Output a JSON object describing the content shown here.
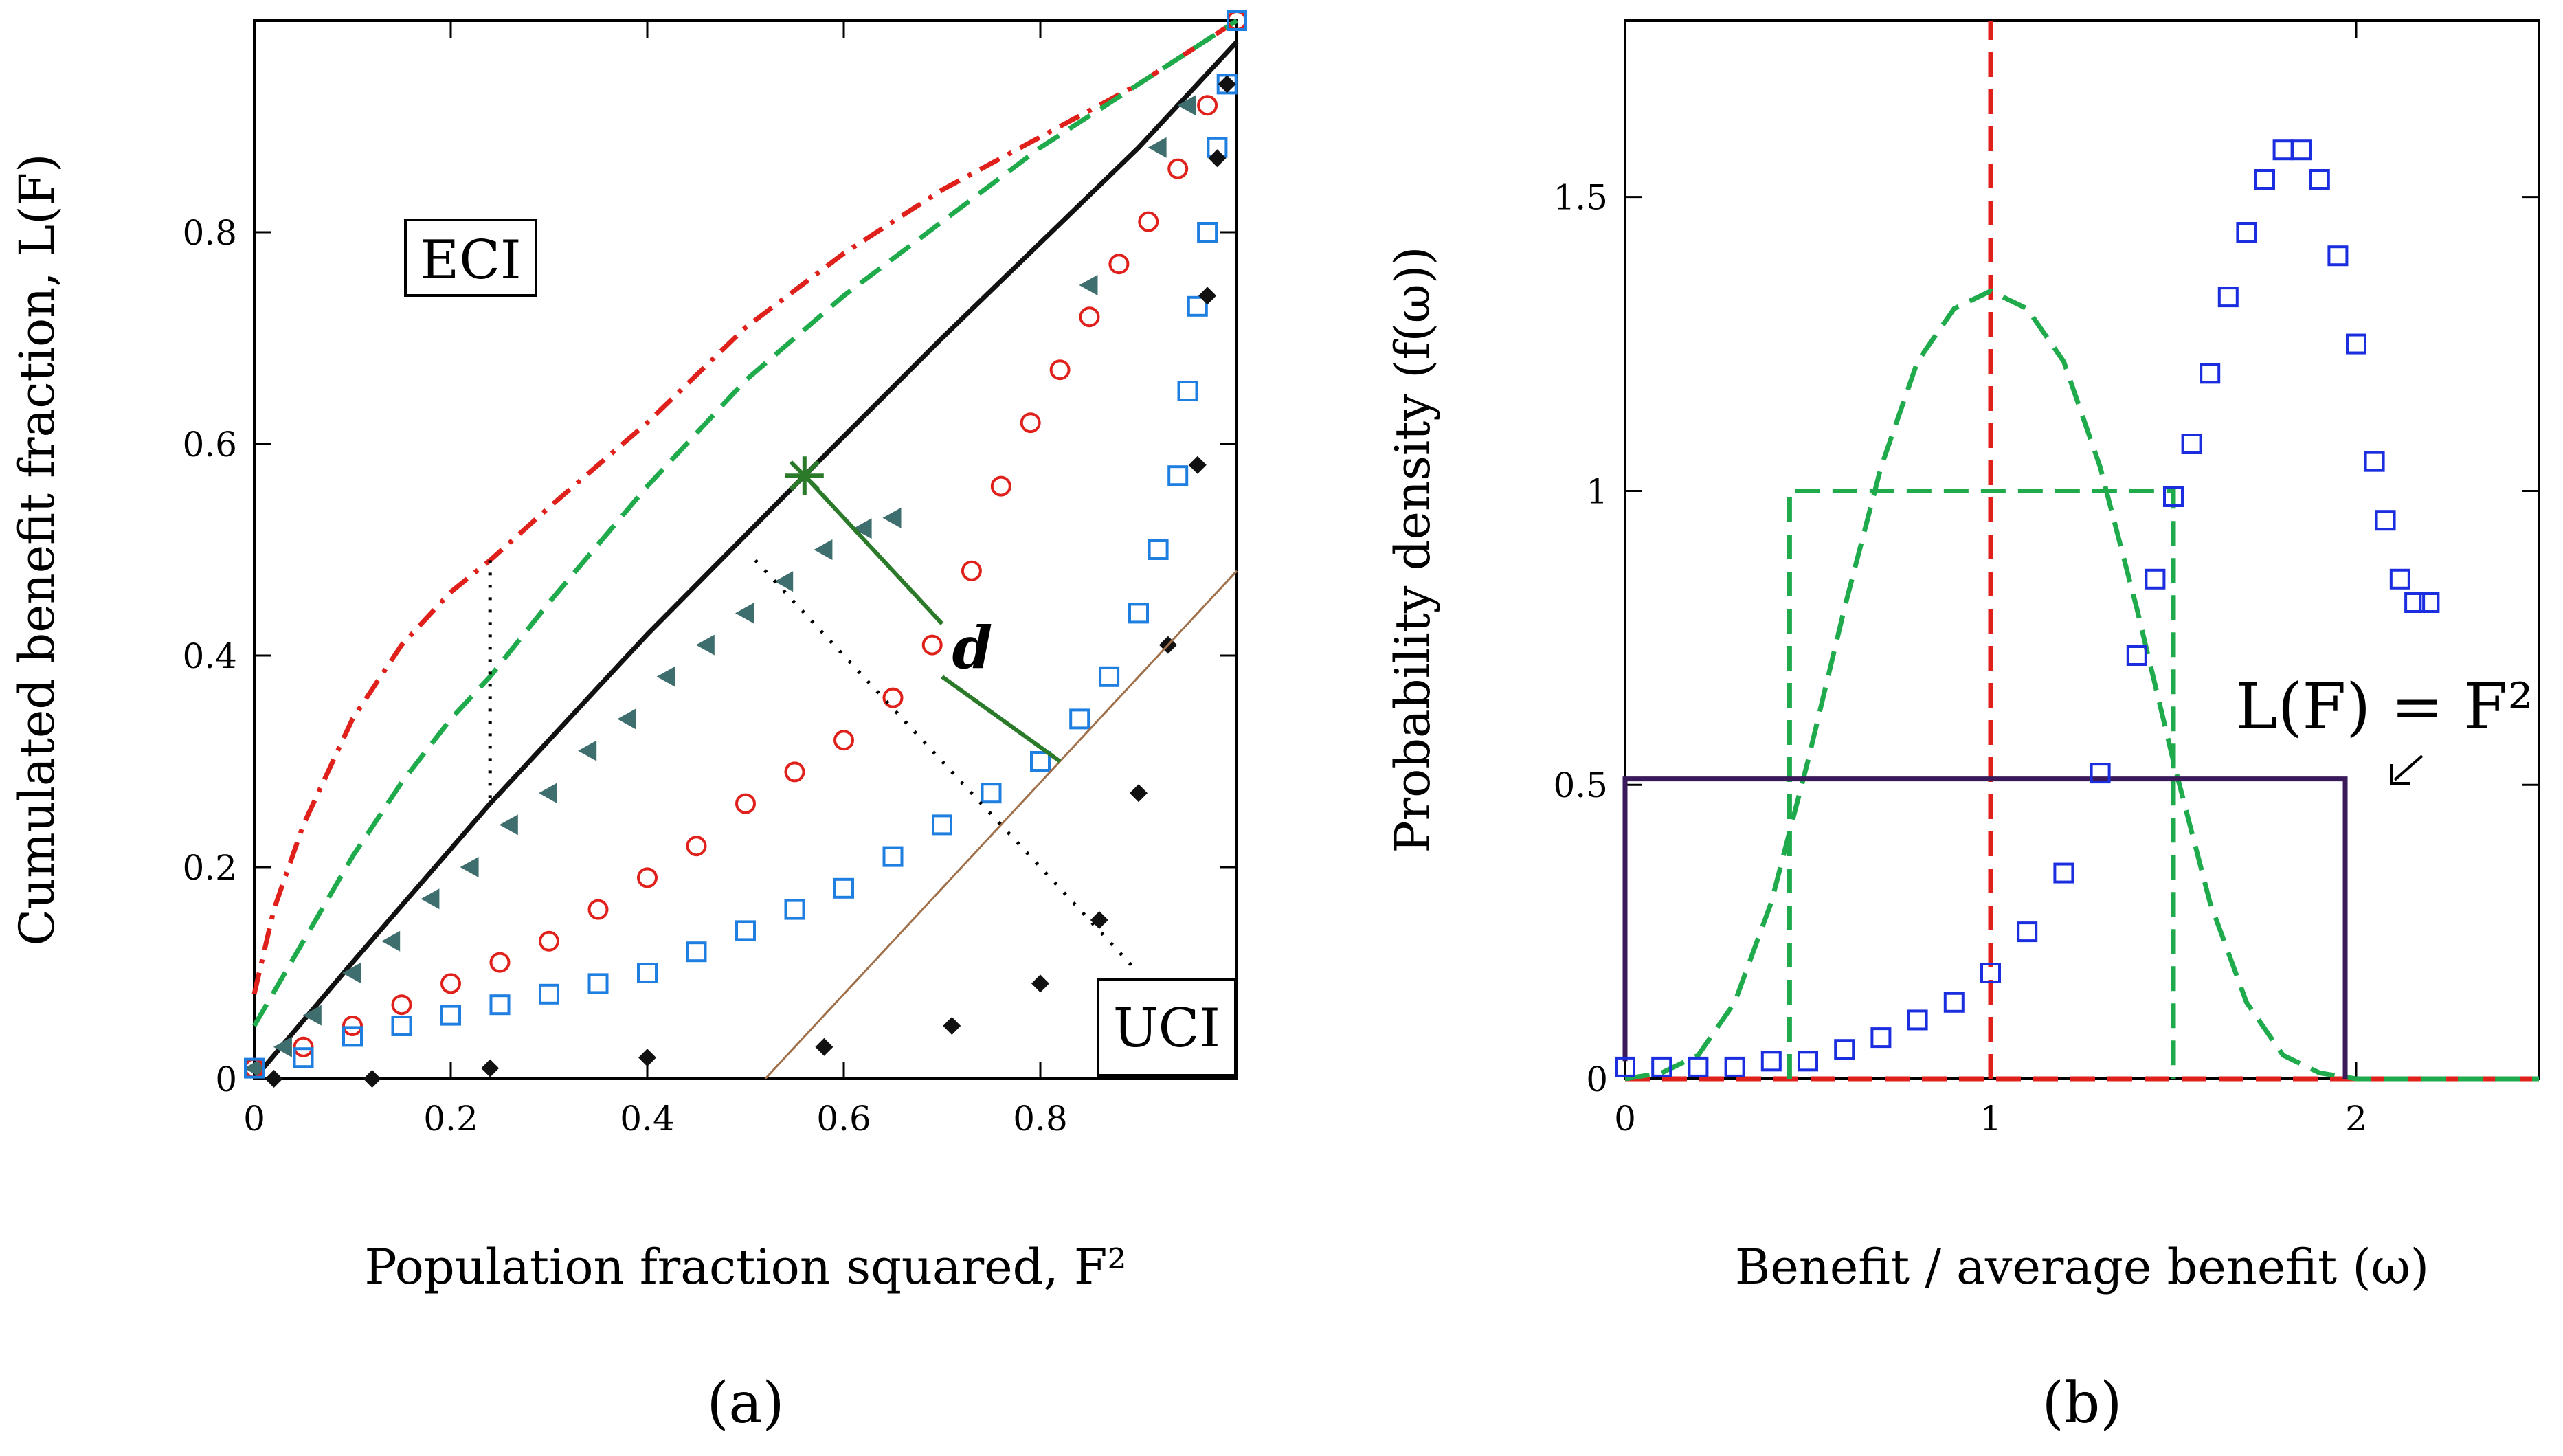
{
  "figure": {
    "caption_a": "(a)",
    "caption_b": "(b)"
  },
  "chart_data": [
    {
      "id": "a",
      "type": "line",
      "xlabel": "Population fraction squared, F²",
      "ylabel": "Cumulated benefit fraction, L(F)",
      "xlim": [
        0,
        1
      ],
      "ylim": [
        0,
        1
      ],
      "xticks": [
        "0",
        "0.2",
        "0.4",
        "0.6",
        "0.8"
      ],
      "yticks": [
        "0",
        "0.2",
        "0.4",
        "0.6",
        "0.8"
      ],
      "labels": {
        "eci": "ECI",
        "uci": "UCI",
        "d": "d"
      },
      "series": [
        {
          "name": "red dash-dot",
          "color": "#e0201a",
          "style": "dashdot",
          "points": [
            [
              0,
              0.08
            ],
            [
              0.02,
              0.16
            ],
            [
              0.05,
              0.24
            ],
            [
              0.1,
              0.34
            ],
            [
              0.15,
              0.41
            ],
            [
              0.2,
              0.46
            ],
            [
              0.24,
              0.49
            ],
            [
              0.3,
              0.54
            ],
            [
              0.4,
              0.62
            ],
            [
              0.5,
              0.71
            ],
            [
              0.6,
              0.78
            ],
            [
              0.7,
              0.84
            ],
            [
              0.8,
              0.89
            ],
            [
              0.9,
              0.94
            ],
            [
              1,
              1
            ]
          ]
        },
        {
          "name": "green dashed",
          "color": "#1faa4c",
          "style": "dashed",
          "points": [
            [
              0,
              0.05
            ],
            [
              0.05,
              0.13
            ],
            [
              0.1,
              0.21
            ],
            [
              0.15,
              0.28
            ],
            [
              0.2,
              0.34
            ],
            [
              0.24,
              0.38
            ],
            [
              0.3,
              0.45
            ],
            [
              0.4,
              0.56
            ],
            [
              0.5,
              0.66
            ],
            [
              0.6,
              0.74
            ],
            [
              0.7,
              0.81
            ],
            [
              0.8,
              0.88
            ],
            [
              0.9,
              0.94
            ],
            [
              1,
              1
            ]
          ]
        },
        {
          "name": "black solid",
          "color": "#111111",
          "style": "solid",
          "points": [
            [
              0,
              0
            ],
            [
              0.1,
              0.11
            ],
            [
              0.24,
              0.26
            ],
            [
              0.4,
              0.42
            ],
            [
              0.56,
              0.57
            ],
            [
              0.7,
              0.7
            ],
            [
              0.8,
              0.79
            ],
            [
              0.9,
              0.88
            ],
            [
              1,
              0.98
            ]
          ]
        },
        {
          "name": "teal triangles",
          "color": "#3f6e6e",
          "style": "triangle",
          "points": [
            [
              0,
              0.01
            ],
            [
              0.03,
              0.03
            ],
            [
              0.06,
              0.06
            ],
            [
              0.1,
              0.1
            ],
            [
              0.14,
              0.13
            ],
            [
              0.18,
              0.17
            ],
            [
              0.22,
              0.2
            ],
            [
              0.26,
              0.24
            ],
            [
              0.3,
              0.27
            ],
            [
              0.34,
              0.31
            ],
            [
              0.38,
              0.34
            ],
            [
              0.42,
              0.38
            ],
            [
              0.46,
              0.41
            ],
            [
              0.5,
              0.44
            ],
            [
              0.54,
              0.47
            ],
            [
              0.58,
              0.5
            ],
            [
              0.62,
              0.52
            ],
            [
              0.65,
              0.53
            ],
            [
              0.85,
              0.75
            ],
            [
              0.92,
              0.88
            ],
            [
              0.95,
              0.92
            ]
          ]
        },
        {
          "name": "red circles",
          "color": "#e0201a",
          "style": "circle",
          "points": [
            [
              0,
              0.01
            ],
            [
              0.05,
              0.03
            ],
            [
              0.1,
              0.05
            ],
            [
              0.15,
              0.07
            ],
            [
              0.2,
              0.09
            ],
            [
              0.25,
              0.11
            ],
            [
              0.3,
              0.13
            ],
            [
              0.35,
              0.16
            ],
            [
              0.4,
              0.19
            ],
            [
              0.45,
              0.22
            ],
            [
              0.5,
              0.26
            ],
            [
              0.55,
              0.29
            ],
            [
              0.6,
              0.32
            ],
            [
              0.65,
              0.36
            ],
            [
              0.69,
              0.41
            ],
            [
              0.73,
              0.48
            ],
            [
              0.76,
              0.56
            ],
            [
              0.79,
              0.62
            ],
            [
              0.82,
              0.67
            ],
            [
              0.85,
              0.72
            ],
            [
              0.88,
              0.77
            ],
            [
              0.91,
              0.81
            ],
            [
              0.94,
              0.86
            ],
            [
              0.97,
              0.92
            ],
            [
              1,
              1
            ]
          ]
        },
        {
          "name": "blue squares",
          "color": "#1f7fe0",
          "style": "square",
          "points": [
            [
              0,
              0.01
            ],
            [
              0.05,
              0.02
            ],
            [
              0.1,
              0.04
            ],
            [
              0.15,
              0.05
            ],
            [
              0.2,
              0.06
            ],
            [
              0.25,
              0.07
            ],
            [
              0.3,
              0.08
            ],
            [
              0.35,
              0.09
            ],
            [
              0.4,
              0.1
            ],
            [
              0.45,
              0.12
            ],
            [
              0.5,
              0.14
            ],
            [
              0.55,
              0.16
            ],
            [
              0.6,
              0.18
            ],
            [
              0.65,
              0.21
            ],
            [
              0.7,
              0.24
            ],
            [
              0.75,
              0.27
            ],
            [
              0.8,
              0.3
            ],
            [
              0.84,
              0.34
            ],
            [
              0.87,
              0.38
            ],
            [
              0.9,
              0.44
            ],
            [
              0.92,
              0.5
            ],
            [
              0.94,
              0.57
            ],
            [
              0.95,
              0.65
            ],
            [
              0.96,
              0.73
            ],
            [
              0.97,
              0.8
            ],
            [
              0.98,
              0.88
            ],
            [
              0.99,
              0.94
            ],
            [
              1,
              1
            ]
          ]
        },
        {
          "name": "black diamonds",
          "color": "#111111",
          "style": "diamond",
          "points": [
            [
              0.02,
              0
            ],
            [
              0.12,
              0
            ],
            [
              0.24,
              0.01
            ],
            [
              0.4,
              0.02
            ],
            [
              0.58,
              0.03
            ],
            [
              0.71,
              0.05
            ],
            [
              0.8,
              0.09
            ],
            [
              0.86,
              0.15
            ],
            [
              0.9,
              0.27
            ],
            [
              0.93,
              0.41
            ],
            [
              0.96,
              0.58
            ],
            [
              0.97,
              0.74
            ],
            [
              0.98,
              0.87
            ],
            [
              0.99,
              0.94
            ]
          ]
        },
        {
          "name": "reference L(F)=F^2",
          "color": "#a0704a",
          "style": "thin",
          "points": [
            [
              0.52,
              0
            ],
            [
              1,
              0.48
            ]
          ]
        }
      ],
      "annotations": {
        "star": [
          0.56,
          0.57
        ],
        "d_upper_end": [
          0.7,
          0.43
        ],
        "d_lower_start": [
          0.7,
          0.38
        ],
        "d_lower_end": [
          0.82,
          0.3
        ],
        "dotted_vertical": [
          [
            0.24,
            0.49
          ],
          [
            0.24,
            0.26
          ]
        ],
        "dotted_diagonal": [
          [
            0.51,
            0.49
          ],
          [
            0.9,
            0.1
          ]
        ]
      }
    },
    {
      "id": "b",
      "type": "line",
      "xlabel": "Benefit / average benefit (ω)",
      "ylabel": "Probability density (f(ω))",
      "xlim": [
        0,
        2.5
      ],
      "ylim": [
        0,
        1.8
      ],
      "xticks": [
        "0",
        "1",
        "2"
      ],
      "yticks": [
        "0",
        "0.5",
        "1",
        "1.5"
      ],
      "labels": {
        "formula": "L(F) = F²"
      },
      "series": [
        {
          "name": "red vertical dashed",
          "color": "#e0201a",
          "style": "dashed",
          "points": [
            [
              1,
              0
            ],
            [
              1,
              1.8
            ]
          ]
        },
        {
          "name": "red baseline dashed",
          "color": "#e0201a",
          "style": "dashed",
          "points": [
            [
              0,
              0
            ],
            [
              2.5,
              0
            ]
          ]
        },
        {
          "name": "green gaussian",
          "color": "#1faa4c",
          "style": "dashed",
          "points": [
            [
              0,
              0.0
            ],
            [
              0.1,
              0.01
            ],
            [
              0.2,
              0.04
            ],
            [
              0.3,
              0.13
            ],
            [
              0.4,
              0.3
            ],
            [
              0.5,
              0.54
            ],
            [
              0.6,
              0.8
            ],
            [
              0.7,
              1.04
            ],
            [
              0.8,
              1.22
            ],
            [
              0.9,
              1.31
            ],
            [
              1,
              1.34
            ],
            [
              1.1,
              1.31
            ],
            [
              1.2,
              1.22
            ],
            [
              1.3,
              1.04
            ],
            [
              1.4,
              0.8
            ],
            [
              1.5,
              0.54
            ],
            [
              1.6,
              0.3
            ],
            [
              1.7,
              0.13
            ],
            [
              1.8,
              0.04
            ],
            [
              1.9,
              0.01
            ],
            [
              2,
              0.0
            ],
            [
              2.5,
              0
            ]
          ]
        },
        {
          "name": "green uniform",
          "color": "#1faa4c",
          "style": "dashed",
          "points": [
            [
              0.45,
              0
            ],
            [
              0.45,
              1
            ],
            [
              1.5,
              1
            ],
            [
              1.5,
              0
            ]
          ]
        },
        {
          "name": "purple uniform",
          "color": "#3a1a5a",
          "style": "solid",
          "points": [
            [
              0,
              0.03
            ],
            [
              0,
              0.51
            ],
            [
              1.97,
              0.51
            ],
            [
              1.97,
              0
            ]
          ]
        },
        {
          "name": "blue squares",
          "color": "#1a2ee0",
          "style": "square",
          "points": [
            [
              0,
              0.02
            ],
            [
              0.1,
              0.02
            ],
            [
              0.2,
              0.02
            ],
            [
              0.3,
              0.02
            ],
            [
              0.4,
              0.03
            ],
            [
              0.5,
              0.03
            ],
            [
              0.6,
              0.05
            ],
            [
              0.7,
              0.07
            ],
            [
              0.8,
              0.1
            ],
            [
              0.9,
              0.13
            ],
            [
              1.0,
              0.18
            ],
            [
              1.1,
              0.25
            ],
            [
              1.2,
              0.35
            ],
            [
              1.3,
              0.52
            ],
            [
              1.4,
              0.72
            ],
            [
              1.45,
              0.85
            ],
            [
              1.5,
              0.99
            ],
            [
              1.55,
              1.08
            ],
            [
              1.6,
              1.2
            ],
            [
              1.65,
              1.33
            ],
            [
              1.7,
              1.44
            ],
            [
              1.75,
              1.53
            ],
            [
              1.8,
              1.58
            ],
            [
              1.85,
              1.58
            ],
            [
              1.9,
              1.53
            ],
            [
              1.95,
              1.4
            ],
            [
              2.0,
              1.25
            ],
            [
              2.05,
              1.05
            ],
            [
              2.08,
              0.95
            ],
            [
              2.12,
              0.85
            ],
            [
              2.16,
              0.81
            ],
            [
              2.2,
              0.81
            ]
          ]
        }
      ]
    }
  ]
}
